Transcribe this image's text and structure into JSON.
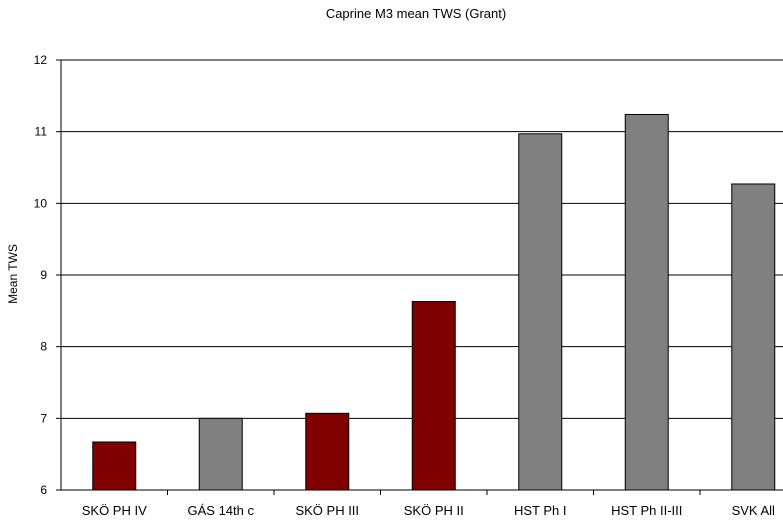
{
  "chart_data": {
    "type": "bar",
    "title": "Caprine M3 mean TWS (Grant)",
    "xlabel": "",
    "ylabel": "Mean TWS",
    "ylim": [
      6,
      12
    ],
    "yticks": [
      "6",
      "7",
      "8",
      "9",
      "10",
      "11",
      "12"
    ],
    "categories": [
      "SKÖ PH IV",
      "GÁS 14th c",
      "SKÖ PH III",
      "SKÖ PH II",
      "HST Ph I",
      "HST Ph II-III",
      "SVK All"
    ],
    "values": [
      6.67,
      7.0,
      7.07,
      8.63,
      10.97,
      11.24,
      10.27
    ],
    "colors": [
      "#800000",
      "#808080",
      "#800000",
      "#800000",
      "#808080",
      "#808080",
      "#808080"
    ],
    "grid": true,
    "legend": "none"
  }
}
